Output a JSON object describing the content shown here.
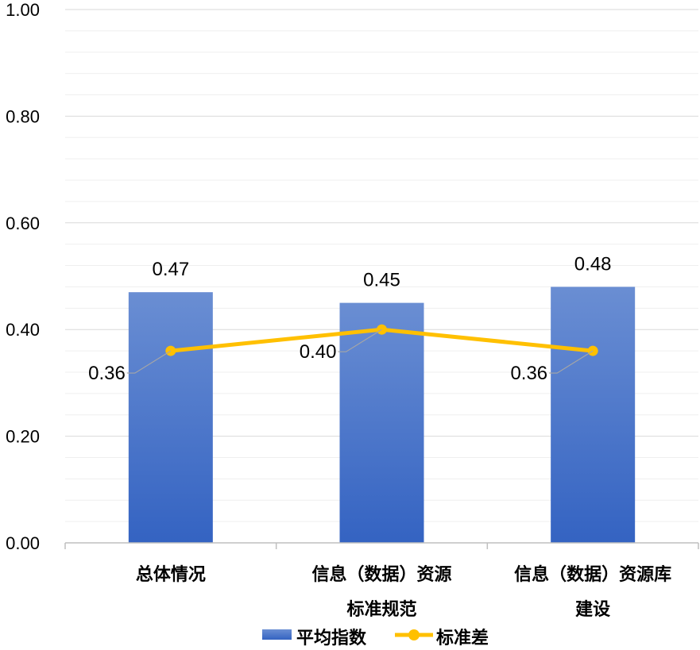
{
  "chart_data": {
    "type": "bar",
    "categories": [
      [
        "总体情况"
      ],
      [
        "信息（数据）资源",
        "标准规范"
      ],
      [
        "信息（数据）资源库",
        "建设"
      ]
    ],
    "series": [
      {
        "name": "平均指数",
        "type": "bar",
        "values": [
          0.47,
          0.45,
          0.48
        ],
        "labels": [
          "0.47",
          "0.45",
          "0.48"
        ],
        "color": "#4472C4"
      },
      {
        "name": "标准差",
        "type": "line",
        "values": [
          0.36,
          0.4,
          0.36
        ],
        "labels": [
          "0.36",
          "0.40",
          "0.36"
        ],
        "color": "#FFC000"
      }
    ],
    "ylim": [
      0,
      1.0
    ],
    "yticks": [
      "0.00",
      "0.20",
      "0.40",
      "0.60",
      "0.80",
      "1.00"
    ],
    "grid": true,
    "legend": "bottom"
  }
}
